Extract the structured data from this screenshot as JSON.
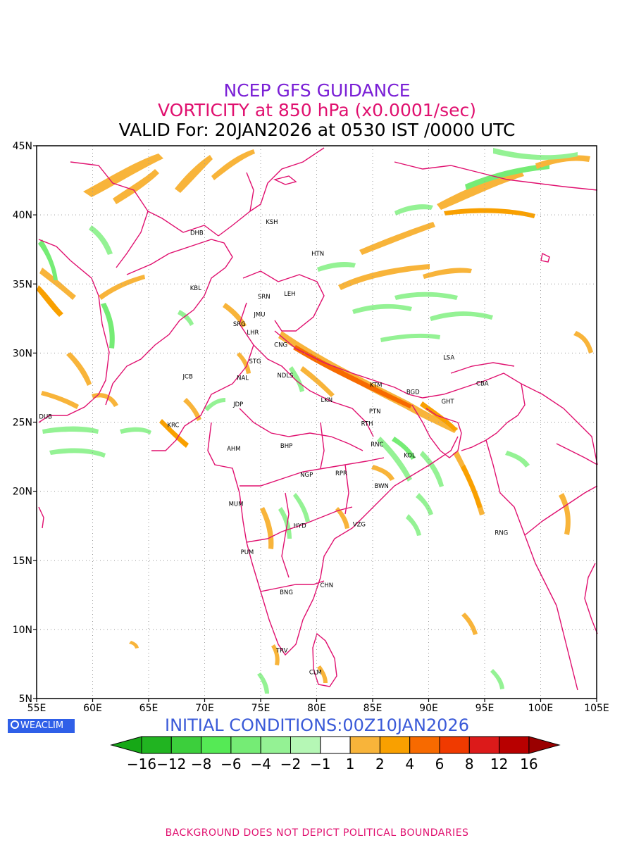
{
  "titles": {
    "line1": "NCEP GFS GUIDANCE",
    "line2": "VORTICITY at 850 hPa (x0.0001/sec)",
    "line3": "VALID For: 20JAN2026 at 0530 IST /0000 UTC"
  },
  "axes": {
    "lat_labels": [
      "45N",
      "40N",
      "35N",
      "30N",
      "25N",
      "20N",
      "15N",
      "10N",
      "5N"
    ],
    "lat_values": [
      45,
      40,
      35,
      30,
      25,
      20,
      15,
      10,
      5
    ],
    "lon_labels": [
      "55E",
      "60E",
      "65E",
      "70E",
      "75E",
      "80E",
      "85E",
      "90E",
      "95E",
      "100E",
      "105E"
    ],
    "lon_values": [
      55,
      60,
      65,
      70,
      75,
      80,
      85,
      90,
      95,
      100,
      105
    ],
    "lon_range": [
      55,
      105
    ],
    "lat_range": [
      5,
      45
    ],
    "grid": "dotted"
  },
  "cities": [
    {
      "code": "KSH",
      "lon": 76.0,
      "lat": 39.5
    },
    {
      "code": "DHB",
      "lon": 69.3,
      "lat": 38.7
    },
    {
      "code": "HTN",
      "lon": 80.1,
      "lat": 37.2
    },
    {
      "code": "KBL",
      "lon": 69.2,
      "lat": 34.7
    },
    {
      "code": "SRN",
      "lon": 75.3,
      "lat": 34.1
    },
    {
      "code": "LEH",
      "lon": 77.6,
      "lat": 34.3
    },
    {
      "code": "JMU",
      "lon": 74.9,
      "lat": 32.8
    },
    {
      "code": "SRG",
      "lon": 73.1,
      "lat": 32.1
    },
    {
      "code": "LHR",
      "lon": 74.3,
      "lat": 31.5
    },
    {
      "code": "CNG",
      "lon": 76.8,
      "lat": 30.6
    },
    {
      "code": "STG",
      "lon": 74.5,
      "lat": 29.4
    },
    {
      "code": "JCB",
      "lon": 68.5,
      "lat": 28.3
    },
    {
      "code": "NAL",
      "lon": 73.4,
      "lat": 28.2
    },
    {
      "code": "NDLS",
      "lon": 77.2,
      "lat": 28.4
    },
    {
      "code": "KTM",
      "lon": 85.3,
      "lat": 27.7
    },
    {
      "code": "BGD",
      "lon": 88.6,
      "lat": 27.2
    },
    {
      "code": "CBA",
      "lon": 94.8,
      "lat": 27.8
    },
    {
      "code": "LSA",
      "lon": 91.8,
      "lat": 29.7
    },
    {
      "code": "LKN",
      "lon": 80.9,
      "lat": 26.6
    },
    {
      "code": "JDP",
      "lon": 73.0,
      "lat": 26.3
    },
    {
      "code": "GHT",
      "lon": 91.7,
      "lat": 26.5
    },
    {
      "code": "PTN",
      "lon": 85.2,
      "lat": 25.8
    },
    {
      "code": "DUB",
      "lon": 55.8,
      "lat": 25.4
    },
    {
      "code": "RTH",
      "lon": 84.5,
      "lat": 24.9
    },
    {
      "code": "KRC",
      "lon": 67.2,
      "lat": 24.8
    },
    {
      "code": "AHM",
      "lon": 72.6,
      "lat": 23.1
    },
    {
      "code": "BHP",
      "lon": 77.3,
      "lat": 23.3
    },
    {
      "code": "RNC",
      "lon": 85.4,
      "lat": 23.4
    },
    {
      "code": "KOL",
      "lon": 88.3,
      "lat": 22.6
    },
    {
      "code": "NGP",
      "lon": 79.1,
      "lat": 21.2
    },
    {
      "code": "RPR",
      "lon": 82.2,
      "lat": 21.3
    },
    {
      "code": "BWN",
      "lon": 85.8,
      "lat": 20.4
    },
    {
      "code": "MUM",
      "lon": 72.8,
      "lat": 19.1
    },
    {
      "code": "HYD",
      "lon": 78.5,
      "lat": 17.5
    },
    {
      "code": "VZG",
      "lon": 83.8,
      "lat": 17.6
    },
    {
      "code": "RNG",
      "lon": 96.5,
      "lat": 17.0
    },
    {
      "code": "PUM",
      "lon": 73.8,
      "lat": 15.6
    },
    {
      "code": "CHN",
      "lon": 80.9,
      "lat": 13.2
    },
    {
      "code": "BNG",
      "lon": 77.3,
      "lat": 12.7
    },
    {
      "code": "TRV",
      "lon": 76.9,
      "lat": 8.5
    },
    {
      "code": "CLM",
      "lon": 79.9,
      "lat": 6.9
    }
  ],
  "init_label": "INITIAL CONDITIONS:00Z10JAN2026",
  "logo_text": "WEACLIM",
  "colorbar": {
    "labels": [
      "−16",
      "−12",
      "−8",
      "−6",
      "−4",
      "−2",
      "−1",
      "1",
      "2",
      "4",
      "6",
      "8",
      "12",
      "16"
    ],
    "colors": [
      "#16a816",
      "#21b421",
      "#3ccf3c",
      "#55ea55",
      "#75ec75",
      "#94f294",
      "#b5f7b5",
      "#ffffff",
      "#f8b43a",
      "#f9a000",
      "#f76a00",
      "#f03a00",
      "#dc1a1a",
      "#b80000",
      "#9a0000"
    ]
  },
  "colors": {
    "boundary": "#e0106f",
    "positive_light": "#f8b43a",
    "positive_mid": "#f9a000",
    "positive_strong": "#f76a00",
    "negative_light": "#94f294",
    "negative_mid": "#55ea55"
  },
  "footer": "BACKGROUND DOES NOT DEPICT POLITICAL BOUNDARIES"
}
